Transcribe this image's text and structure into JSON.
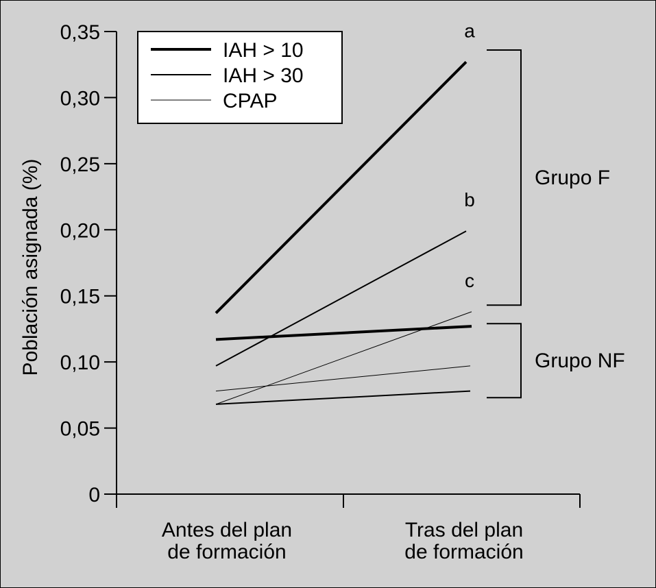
{
  "chart_data": {
    "type": "line",
    "ylabel": "Población asignada (%)",
    "xlabel": "",
    "x_categories": [
      "Antes del plan\nde formación",
      "Tras del plan\nde formación"
    ],
    "ylim": [
      0,
      0.35
    ],
    "yticks": [
      0,
      0.05,
      0.1,
      0.15,
      0.2,
      0.25,
      0.3,
      0.35
    ],
    "ytick_labels": [
      "0",
      "0,05",
      "0,10",
      "0,15",
      "0,20",
      "0,25",
      "0,30",
      "0,35"
    ],
    "grid": false,
    "legend_position": "top-left",
    "legend": [
      {
        "label": "IAH > 10",
        "style": "thick"
      },
      {
        "label": "IAH > 30",
        "style": "medium"
      },
      {
        "label": "CPAP",
        "style": "thin"
      }
    ],
    "series": [
      {
        "label": "a",
        "group": "Grupo F",
        "style": "thick",
        "values": [
          0.137,
          0.327
        ]
      },
      {
        "label": "b",
        "group": "Grupo F",
        "style": "medium",
        "values": [
          0.097,
          0.199
        ]
      },
      {
        "label": "c",
        "group": "Grupo F",
        "style": "thin",
        "values": [
          0.068,
          0.138
        ]
      },
      {
        "label": "",
        "group": "Grupo NF",
        "style": "thick",
        "values": [
          0.117,
          0.127
        ]
      },
      {
        "label": "",
        "group": "Grupo NF",
        "style": "thin",
        "values": [
          0.078,
          0.097
        ]
      },
      {
        "label": "",
        "group": "Grupo NF",
        "style": "medium",
        "values": [
          0.068,
          0.078
        ]
      }
    ],
    "groups": [
      {
        "name": "Grupo F",
        "range": [
          0.143,
          0.336
        ]
      },
      {
        "name": "Grupo NF",
        "range": [
          0.073,
          0.129
        ]
      }
    ],
    "colors": {
      "line": "#000000",
      "background": "#d1d1d1",
      "legend_bg": "#ffffff"
    }
  }
}
